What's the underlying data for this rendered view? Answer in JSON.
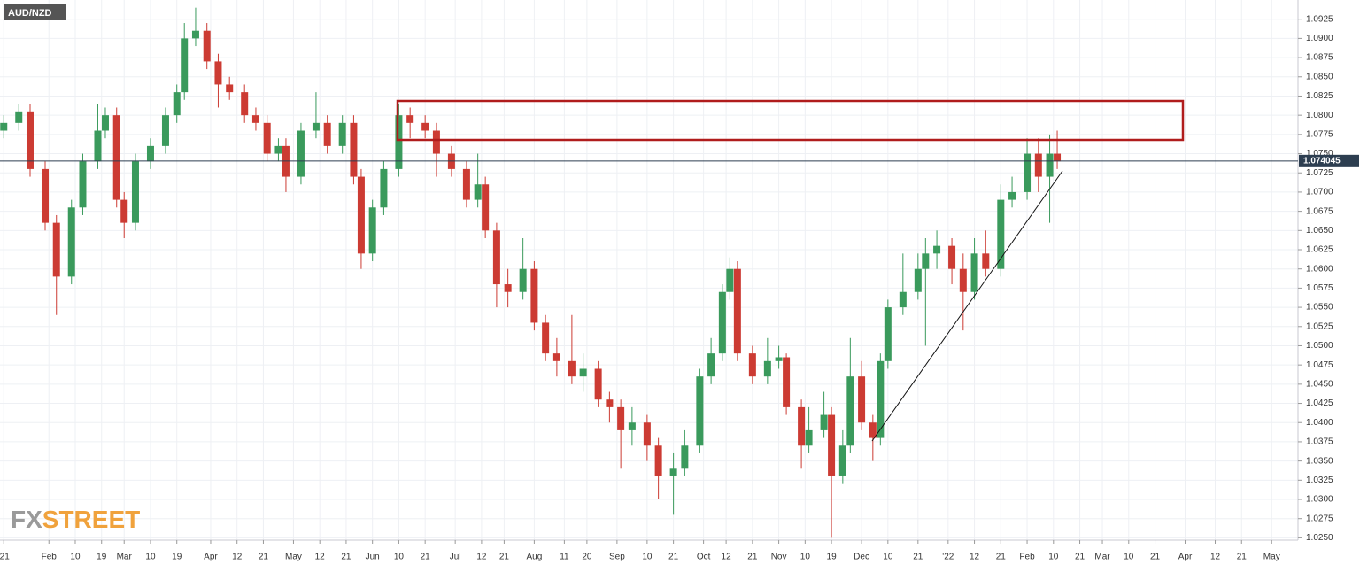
{
  "chart_data": {
    "type": "candlestick",
    "title": "AUD/NZD",
    "x": [
      1,
      5,
      8,
      12,
      15,
      19,
      22,
      26,
      28,
      31,
      33,
      36,
      40,
      44,
      47,
      49,
      52,
      55,
      58,
      61,
      65,
      68,
      71,
      74,
      76,
      80,
      84,
      87,
      91,
      94,
      96,
      99,
      102,
      106,
      109,
      113,
      116,
      120,
      124,
      127,
      129,
      132,
      135,
      139,
      142,
      145,
      148,
      152,
      155,
      159,
      162,
      165,
      168,
      172,
      175,
      179,
      182,
      186,
      189,
      192,
      194,
      196,
      200,
      204,
      207,
      209,
      213,
      215,
      219,
      221,
      224,
      226,
      229,
      232,
      234,
      236,
      240,
      244,
      246,
      249,
      253,
      256,
      259,
      262,
      266,
      269,
      273,
      276,
      279,
      281
    ],
    "open": [
      1.078,
      1.079,
      1.0805,
      1.073,
      1.066,
      1.059,
      1.068,
      1.074,
      1.078,
      1.08,
      1.069,
      1.066,
      1.074,
      1.076,
      1.08,
      1.083,
      1.09,
      1.091,
      1.087,
      1.084,
      1.083,
      1.08,
      1.079,
      1.075,
      1.076,
      1.072,
      1.078,
      1.079,
      1.076,
      1.079,
      1.072,
      1.062,
      1.068,
      1.073,
      1.08,
      1.079,
      1.078,
      1.075,
      1.073,
      1.069,
      1.071,
      1.065,
      1.058,
      1.057,
      1.06,
      1.053,
      1.049,
      1.048,
      1.046,
      1.047,
      1.043,
      1.042,
      1.039,
      1.04,
      1.037,
      1.033,
      1.034,
      1.037,
      1.046,
      1.049,
      1.057,
      1.06,
      1.049,
      1.046,
      1.048,
      1.0485,
      1.042,
      1.037,
      1.039,
      1.041,
      1.033,
      1.037,
      1.046,
      1.04,
      1.038,
      1.048,
      1.055,
      1.057,
      1.06,
      1.062,
      1.063,
      1.06,
      1.057,
      1.062,
      1.06,
      1.069,
      1.07,
      1.075,
      1.072,
      1.075
    ],
    "high": [
      1.08,
      1.0815,
      1.0815,
      1.074,
      1.067,
      1.069,
      1.075,
      1.0815,
      1.081,
      1.081,
      1.07,
      1.075,
      1.077,
      1.081,
      1.084,
      1.092,
      1.094,
      1.092,
      1.088,
      1.085,
      1.084,
      1.081,
      1.08,
      1.077,
      1.077,
      1.079,
      1.083,
      1.08,
      1.08,
      1.08,
      1.073,
      1.069,
      1.074,
      1.0815,
      1.081,
      1.08,
      1.079,
      1.076,
      1.074,
      1.075,
      1.072,
      1.066,
      1.06,
      1.064,
      1.061,
      1.054,
      1.051,
      1.054,
      1.049,
      1.048,
      1.044,
      1.043,
      1.042,
      1.041,
      1.038,
      1.036,
      1.039,
      1.047,
      1.051,
      1.058,
      1.0615,
      1.061,
      1.05,
      1.051,
      1.05,
      1.049,
      1.043,
      1.042,
      1.044,
      1.042,
      1.039,
      1.051,
      1.048,
      1.041,
      1.049,
      1.056,
      1.062,
      1.062,
      1.064,
      1.065,
      1.064,
      1.062,
      1.064,
      1.065,
      1.071,
      1.072,
      1.077,
      1.077,
      1.0775,
      1.078
    ],
    "low": [
      1.077,
      1.078,
      1.072,
      1.065,
      1.054,
      1.058,
      1.067,
      1.073,
      1.077,
      1.068,
      1.064,
      1.065,
      1.073,
      1.075,
      1.079,
      1.082,
      1.089,
      1.086,
      1.081,
      1.082,
      1.079,
      1.078,
      1.074,
      1.074,
      1.07,
      1.071,
      1.077,
      1.075,
      1.075,
      1.071,
      1.06,
      1.061,
      1.067,
      1.072,
      1.077,
      1.077,
      1.072,
      1.072,
      1.068,
      1.068,
      1.064,
      1.055,
      1.055,
      1.056,
      1.052,
      1.048,
      1.046,
      1.045,
      1.044,
      1.042,
      1.04,
      1.034,
      1.037,
      1.035,
      1.03,
      1.028,
      1.033,
      1.036,
      1.045,
      1.048,
      1.056,
      1.048,
      1.045,
      1.045,
      1.047,
      1.041,
      1.034,
      1.036,
      1.038,
      1.025,
      1.032,
      1.036,
      1.039,
      1.035,
      1.037,
      1.047,
      1.054,
      1.056,
      1.05,
      1.06,
      1.058,
      1.052,
      1.056,
      1.059,
      1.059,
      1.068,
      1.069,
      1.07,
      1.066,
      1.073
    ],
    "close": [
      1.079,
      1.0805,
      1.073,
      1.066,
      1.059,
      1.068,
      1.074,
      1.078,
      1.08,
      1.069,
      1.066,
      1.074,
      1.076,
      1.08,
      1.083,
      1.09,
      1.091,
      1.087,
      1.084,
      1.083,
      1.08,
      1.079,
      1.075,
      1.076,
      1.072,
      1.078,
      1.079,
      1.076,
      1.079,
      1.072,
      1.062,
      1.068,
      1.073,
      1.08,
      1.079,
      1.078,
      1.075,
      1.073,
      1.069,
      1.071,
      1.065,
      1.058,
      1.057,
      1.06,
      1.053,
      1.049,
      1.048,
      1.046,
      1.047,
      1.043,
      1.042,
      1.039,
      1.04,
      1.037,
      1.033,
      1.034,
      1.037,
      1.046,
      1.049,
      1.057,
      1.06,
      1.049,
      1.046,
      1.048,
      1.0485,
      1.042,
      1.037,
      1.039,
      1.041,
      1.033,
      1.037,
      1.046,
      1.04,
      1.038,
      1.048,
      1.055,
      1.057,
      1.06,
      1.062,
      1.063,
      1.06,
      1.057,
      1.062,
      1.06,
      1.069,
      1.07,
      1.075,
      1.072,
      1.075,
      1.074
    ],
    "up_color": "#3a9a5c",
    "down_color": "#cc3b33",
    "last_price": 1.074045,
    "xlim": [
      0,
      345
    ],
    "ylim": [
      1.0247,
      1.095
    ],
    "xticks": [
      {
        "value": 1,
        "label": "'21"
      },
      {
        "value": 13,
        "label": "Feb"
      },
      {
        "value": 20,
        "label": "10"
      },
      {
        "value": 27,
        "label": "19"
      },
      {
        "value": 33,
        "label": "Mar"
      },
      {
        "value": 40,
        "label": "10"
      },
      {
        "value": 47,
        "label": "19"
      },
      {
        "value": 56,
        "label": "Apr"
      },
      {
        "value": 63,
        "label": "12"
      },
      {
        "value": 70,
        "label": "21"
      },
      {
        "value": 78,
        "label": "May"
      },
      {
        "value": 85,
        "label": "12"
      },
      {
        "value": 92,
        "label": "21"
      },
      {
        "value": 99,
        "label": "Jun"
      },
      {
        "value": 106,
        "label": "10"
      },
      {
        "value": 113,
        "label": "21"
      },
      {
        "value": 121,
        "label": "Jul"
      },
      {
        "value": 128,
        "label": "12"
      },
      {
        "value": 134,
        "label": "21"
      },
      {
        "value": 142,
        "label": "Aug"
      },
      {
        "value": 150,
        "label": "11"
      },
      {
        "value": 156,
        "label": "20"
      },
      {
        "value": 164,
        "label": "Sep"
      },
      {
        "value": 172,
        "label": "10"
      },
      {
        "value": 179,
        "label": "21"
      },
      {
        "value": 187,
        "label": "Oct"
      },
      {
        "value": 193,
        "label": "12"
      },
      {
        "value": 200,
        "label": "21"
      },
      {
        "value": 207,
        "label": "Nov"
      },
      {
        "value": 214,
        "label": "10"
      },
      {
        "value": 221,
        "label": "19"
      },
      {
        "value": 229,
        "label": "Dec"
      },
      {
        "value": 236,
        "label": "10"
      },
      {
        "value": 244,
        "label": "21"
      },
      {
        "value": 252,
        "label": "'22"
      },
      {
        "value": 259,
        "label": "12"
      },
      {
        "value": 266,
        "label": "21"
      },
      {
        "value": 273,
        "label": "Feb"
      },
      {
        "value": 280,
        "label": "10"
      },
      {
        "value": 287,
        "label": "21"
      },
      {
        "value": 293,
        "label": "Mar"
      },
      {
        "value": 300,
        "label": "10"
      },
      {
        "value": 307,
        "label": "21"
      },
      {
        "value": 315,
        "label": "Apr"
      },
      {
        "value": 323,
        "label": "12"
      },
      {
        "value": 330,
        "label": "21"
      },
      {
        "value": 338,
        "label": "May"
      }
    ],
    "yticks": [
      {
        "value": 1.025,
        "label": "1.0250"
      },
      1.0275,
      {
        "value": 1.03,
        "label": "1.0300"
      },
      1.0325,
      {
        "value": 1.035,
        "label": "1.0350"
      },
      1.0375,
      {
        "value": 1.04,
        "label": "1.0400"
      },
      1.0425,
      {
        "value": 1.045,
        "label": "1.0450"
      },
      1.0475,
      {
        "value": 1.05,
        "label": "1.0500"
      },
      1.0525,
      {
        "value": 1.055,
        "label": "1.0550"
      },
      1.0575,
      {
        "value": 1.06,
        "label": "1.0600"
      },
      1.0625,
      {
        "value": 1.065,
        "label": "1.0650"
      },
      1.0675,
      {
        "value": 1.07,
        "label": "1.0700"
      },
      1.0725,
      {
        "value": 1.075,
        "label": "1.0750"
      },
      1.0775,
      {
        "value": 1.08,
        "label": "1.0800"
      },
      1.0825,
      {
        "value": 1.085,
        "label": "1.0850"
      },
      1.0875,
      {
        "value": 1.09,
        "label": "1.0900"
      },
      1.0925
    ],
    "grid": true
  },
  "watermark": [
    "FX",
    "STREET"
  ]
}
